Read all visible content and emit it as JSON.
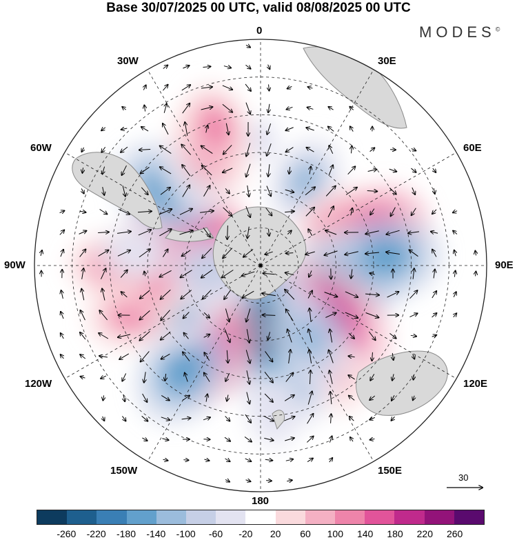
{
  "title": "Base 30/07/2025 00 UTC, valid 08/08/2025 00 UTC",
  "brand": "MODES",
  "brand_mark": "©",
  "longitude_labels": {
    "top": "0",
    "e30": "30E",
    "e60": "60E",
    "e90": "90E",
    "e120": "120E",
    "e150": "150E",
    "bottom": "180",
    "w150": "150W",
    "w120": "120W",
    "w90": "90W",
    "w60": "60W",
    "w30": "30W"
  },
  "reference_vector": {
    "value": "30"
  },
  "colorbar": {
    "colors": [
      "#0d3b5e",
      "#1e5f8e",
      "#3a7fb5",
      "#62a0cc",
      "#9bbcdc",
      "#c6cfe6",
      "#e3e3f1",
      "#ffffff",
      "#fadadd",
      "#f4b0c3",
      "#ee84aa",
      "#e2549a",
      "#c02a8c",
      "#931379",
      "#5a0a6e"
    ],
    "tick_labels": [
      "-260",
      "-220",
      "-180",
      "-140",
      "-100",
      "-60",
      "-20",
      "20",
      "60",
      "100",
      "140",
      "180",
      "220",
      "260"
    ]
  },
  "anomaly_field": [
    {
      "lon": 0,
      "lat": -40,
      "value": -40
    },
    {
      "lon": 28,
      "lat": -52,
      "value": -110
    },
    {
      "lon": 60,
      "lat": -56,
      "value": 90
    },
    {
      "lon": 72,
      "lat": -42,
      "value": 150
    },
    {
      "lon": 98,
      "lat": -56,
      "value": -170
    },
    {
      "lon": 86,
      "lat": -40,
      "value": -160
    },
    {
      "lon": 132,
      "lat": -56,
      "value": 240
    },
    {
      "lon": 146,
      "lat": -38,
      "value": 80
    },
    {
      "lon": 163,
      "lat": -42,
      "value": -110
    },
    {
      "lon": 174,
      "lat": -64,
      "value": -240
    },
    {
      "lon": 146,
      "lat": -55,
      "value": -140
    },
    {
      "lon": 175,
      "lat": -32,
      "value": -60
    },
    {
      "lon": -150,
      "lat": -52,
      "value": 170
    },
    {
      "lon": -144,
      "lat": -38,
      "value": -160
    },
    {
      "lon": -118,
      "lat": -52,
      "value": -120
    },
    {
      "lon": -110,
      "lat": -36,
      "value": 120
    },
    {
      "lon": -96,
      "lat": -48,
      "value": 130
    },
    {
      "lon": -76,
      "lat": -58,
      "value": 170
    },
    {
      "lon": -60,
      "lat": -64,
      "value": 150
    },
    {
      "lon": -95,
      "lat": -70,
      "value": -100
    },
    {
      "lon": -52,
      "lat": -42,
      "value": -160
    },
    {
      "lon": -38,
      "lat": -46,
      "value": -70
    },
    {
      "lon": -90,
      "lat": -30,
      "value": 90
    },
    {
      "lon": -84,
      "lat": -40,
      "value": -60
    },
    {
      "lon": -24,
      "lat": -40,
      "value": 130
    },
    {
      "lon": -18,
      "lat": -32,
      "value": 100
    }
  ],
  "colors": {
    "land": "#d9d9d9",
    "coast": "#8a8a8a",
    "grid": "#222222",
    "frame": "#222222"
  }
}
